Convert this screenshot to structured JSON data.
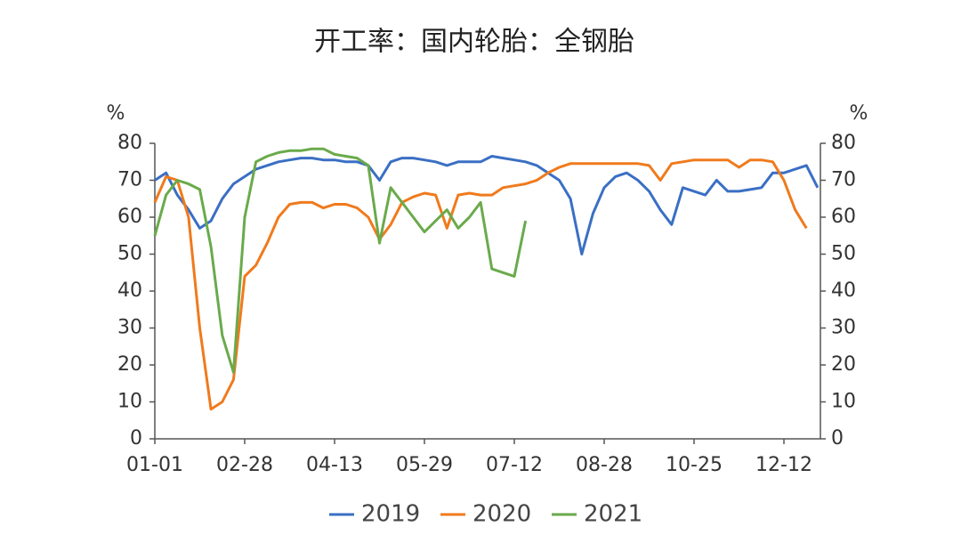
{
  "chart_data": {
    "type": "line",
    "title": "开工率：国内轮胎：全钢胎",
    "ylabel": "%",
    "y2label": "%",
    "categories": [
      "01-01",
      null,
      null,
      null,
      null,
      null,
      null,
      null,
      "02-28",
      null,
      null,
      null,
      null,
      null,
      null,
      null,
      "04-13",
      null,
      null,
      null,
      null,
      null,
      null,
      null,
      "05-29",
      null,
      null,
      null,
      null,
      null,
      null,
      null,
      "07-12",
      null,
      null,
      null,
      null,
      null,
      null,
      null,
      "08-28",
      null,
      null,
      null,
      null,
      null,
      null,
      null,
      "10-25",
      null,
      null,
      null,
      null,
      null,
      null,
      null,
      "12-12",
      null,
      null,
      null
    ],
    "series": [
      {
        "name": "2019",
        "color": "#3a6fc4",
        "values": [
          70,
          72,
          66,
          62,
          57,
          59,
          65,
          69,
          71,
          73,
          74,
          75,
          75.5,
          76,
          76,
          75.5,
          75.5,
          75,
          75,
          74,
          70,
          75,
          76,
          76,
          75.5,
          75,
          74,
          75,
          75,
          75,
          76.5,
          76,
          75.5,
          75,
          74,
          72,
          70,
          65,
          50,
          61,
          68,
          71,
          72,
          70,
          67,
          62,
          58,
          68,
          67,
          66,
          70,
          67,
          67,
          67.5,
          68,
          72,
          72,
          73,
          74,
          68
        ]
      },
      {
        "name": "2020",
        "color": "#f07a1c",
        "values": [
          64,
          71,
          70,
          60,
          30,
          8,
          10,
          16,
          44,
          47,
          53,
          60,
          63.5,
          64,
          64,
          62.5,
          63.5,
          63.5,
          62.5,
          60,
          54,
          58,
          64,
          65.5,
          66.5,
          66,
          57,
          66,
          66.5,
          66,
          66,
          68,
          68.5,
          69,
          70,
          72,
          73.5,
          74.5,
          74.5,
          74.5,
          74.5,
          74.5,
          74.5,
          74.5,
          74,
          70,
          74.5,
          75,
          75.5,
          75.5,
          75.5,
          75.5,
          73.5,
          75.5,
          75.5,
          75,
          70,
          62,
          57,
          null
        ]
      },
      {
        "name": "2021",
        "color": "#6aaa4b",
        "values": [
          55,
          66,
          70,
          69,
          67.5,
          52,
          28,
          18,
          60,
          75,
          76.5,
          77.5,
          78,
          78,
          78.5,
          78.5,
          77,
          76.5,
          76,
          74,
          53,
          68,
          64,
          60,
          56,
          59,
          62,
          57,
          60,
          64,
          46,
          45,
          44,
          59,
          null,
          null,
          null,
          null,
          null,
          null,
          null,
          null,
          null,
          null,
          null,
          null,
          null,
          null,
          null,
          null,
          null,
          null,
          null,
          null,
          null,
          null,
          null,
          null,
          null,
          null
        ]
      }
    ],
    "ylim": [
      0,
      80
    ],
    "yticks": [
      0,
      10,
      20,
      30,
      40,
      50,
      60,
      70,
      80
    ],
    "y2lim": [
      0,
      80
    ],
    "y2ticks": [
      0,
      10,
      20,
      30,
      40,
      50,
      60,
      70,
      80
    ]
  }
}
